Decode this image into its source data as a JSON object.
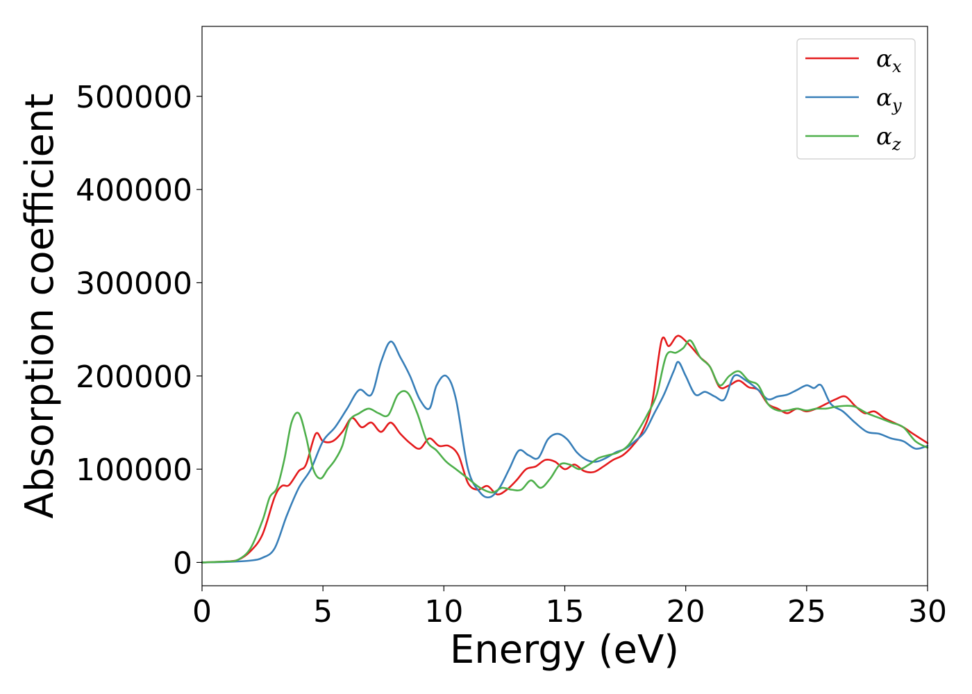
{
  "chart_data": {
    "type": "line",
    "xlabel": "Energy (eV)",
    "ylabel": "Absorption coefficient",
    "xlim": [
      0,
      30
    ],
    "ylim": [
      -25000,
      575000
    ],
    "xticks": [
      "0",
      "5",
      "10",
      "15",
      "20",
      "25",
      "30"
    ],
    "yticks": [
      "0",
      "100000",
      "200000",
      "300000",
      "400000",
      "500000"
    ],
    "grid": false,
    "legend_position": "top-right",
    "series": [
      {
        "name": "αx",
        "symbol": "α",
        "subscript": "x",
        "color": "#e41a1c",
        "x": [
          0,
          1,
          1.5,
          2,
          2.5,
          3,
          3.3,
          3.6,
          4,
          4.3,
          4.7,
          5,
          5.4,
          5.8,
          6.2,
          6.6,
          7,
          7.4,
          7.8,
          8.2,
          8.6,
          9,
          9.4,
          9.8,
          10.2,
          10.6,
          11,
          11.4,
          11.8,
          12.2,
          12.6,
          13,
          13.4,
          13.8,
          14.2,
          14.6,
          15,
          15.4,
          15.8,
          16.2,
          16.6,
          17,
          17.4,
          17.8,
          18.2,
          18.6,
          19,
          19.3,
          19.6,
          19.8,
          20.2,
          20.6,
          21,
          21.4,
          21.8,
          22.2,
          22.6,
          23,
          23.4,
          23.8,
          24.2,
          24.6,
          25,
          25.4,
          25.8,
          26.2,
          26.6,
          27,
          27.4,
          27.8,
          28.2,
          28.6,
          29,
          29.4,
          30
        ],
        "y": [
          0,
          1000,
          3000,
          12000,
          30000,
          70000,
          82000,
          83000,
          98000,
          105000,
          138000,
          130000,
          130000,
          140000,
          155000,
          145000,
          150000,
          140000,
          150000,
          138000,
          128000,
          122000,
          133000,
          125000,
          125000,
          115000,
          85000,
          78000,
          82000,
          73000,
          78000,
          88000,
          100000,
          103000,
          110000,
          108000,
          100000,
          105000,
          98000,
          97000,
          103000,
          110000,
          115000,
          125000,
          140000,
          170000,
          238000,
          232000,
          242000,
          242000,
          232000,
          220000,
          210000,
          188000,
          190000,
          195000,
          188000,
          185000,
          170000,
          165000,
          160000,
          165000,
          162000,
          165000,
          170000,
          175000,
          178000,
          168000,
          160000,
          162000,
          155000,
          150000,
          145000,
          138000,
          128000
        ]
      },
      {
        "name": "αy",
        "symbol": "α",
        "subscript": "y",
        "color": "#377eb8",
        "x": [
          0,
          1,
          2,
          2.5,
          3,
          3.5,
          4,
          4.5,
          5,
          5.5,
          6,
          6.5,
          7,
          7.4,
          7.8,
          8.2,
          8.6,
          9,
          9.4,
          9.7,
          10.1,
          10.5,
          11,
          11.5,
          11.9,
          12.3,
          12.7,
          13.1,
          13.5,
          13.9,
          14.3,
          14.7,
          15.1,
          15.5,
          15.9,
          16.3,
          16.7,
          17.1,
          17.5,
          17.9,
          18.3,
          18.7,
          19.1,
          19.5,
          19.7,
          20,
          20.4,
          20.8,
          21.2,
          21.6,
          22,
          22.5,
          23,
          23.4,
          23.8,
          24.2,
          24.6,
          25,
          25.3,
          25.6,
          26,
          26.5,
          27,
          27.5,
          28,
          28.5,
          29,
          29.5,
          30
        ],
        "y": [
          0,
          500,
          2000,
          5000,
          15000,
          50000,
          80000,
          100000,
          130000,
          145000,
          165000,
          185000,
          180000,
          215000,
          237000,
          220000,
          200000,
          175000,
          165000,
          190000,
          200000,
          175000,
          100000,
          75000,
          70000,
          80000,
          100000,
          120000,
          115000,
          112000,
          132000,
          138000,
          132000,
          118000,
          110000,
          108000,
          112000,
          118000,
          122000,
          130000,
          140000,
          160000,
          180000,
          205000,
          215000,
          200000,
          180000,
          183000,
          178000,
          175000,
          200000,
          195000,
          185000,
          175000,
          178000,
          180000,
          185000,
          190000,
          187000,
          190000,
          170000,
          162000,
          150000,
          140000,
          138000,
          133000,
          130000,
          122000,
          125000
        ]
      },
      {
        "name": "αz",
        "symbol": "α",
        "subscript": "z",
        "color": "#4daf4a",
        "x": [
          0,
          1,
          1.5,
          2,
          2.5,
          2.8,
          3.1,
          3.4,
          3.7,
          4,
          4.3,
          4.6,
          4.9,
          5.2,
          5.5,
          5.8,
          6.1,
          6.5,
          6.9,
          7.3,
          7.7,
          8.1,
          8.5,
          8.9,
          9.3,
          9.7,
          10.1,
          10.5,
          11,
          11.5,
          12,
          12.4,
          12.8,
          13.2,
          13.6,
          14,
          14.4,
          14.8,
          15.2,
          15.6,
          16,
          16.4,
          16.8,
          17.2,
          17.6,
          18,
          18.4,
          18.8,
          19.2,
          19.6,
          19.9,
          20.2,
          20.6,
          21,
          21.4,
          21.8,
          22.2,
          22.6,
          23,
          23.4,
          23.8,
          24.2,
          24.6,
          25,
          25.4,
          25.8,
          26.2,
          26.6,
          27,
          27.5,
          28,
          28.5,
          29,
          29.5,
          30
        ],
        "y": [
          0,
          1000,
          3000,
          15000,
          45000,
          70000,
          80000,
          110000,
          150000,
          160000,
          135000,
          100000,
          90000,
          100000,
          110000,
          125000,
          152000,
          160000,
          165000,
          160000,
          158000,
          180000,
          182000,
          160000,
          130000,
          120000,
          108000,
          100000,
          90000,
          80000,
          75000,
          80000,
          78000,
          78000,
          88000,
          80000,
          90000,
          105000,
          105000,
          100000,
          105000,
          112000,
          115000,
          118000,
          125000,
          140000,
          158000,
          180000,
          222000,
          225000,
          230000,
          238000,
          220000,
          210000,
          190000,
          200000,
          205000,
          195000,
          190000,
          170000,
          163000,
          163000,
          165000,
          163000,
          165000,
          165000,
          167000,
          168000,
          167000,
          160000,
          155000,
          150000,
          145000,
          130000,
          123000
        ]
      }
    ]
  }
}
